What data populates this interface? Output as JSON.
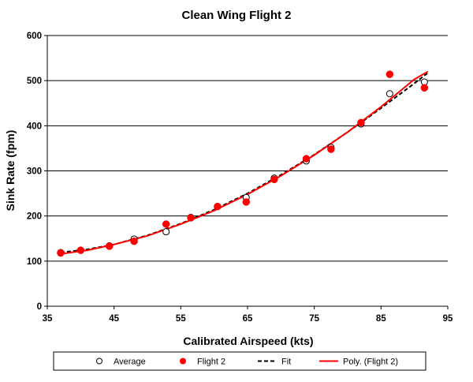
{
  "chart_data": {
    "type": "scatter",
    "title": "Clean Wing Flight 2",
    "xlabel": "Calibrated Airspeed (kts)",
    "ylabel": "Sink Rate (fpm)",
    "xlim": [
      35,
      95
    ],
    "ylim": [
      0,
      600
    ],
    "x_ticks": [
      35,
      45,
      55,
      65,
      75,
      85,
      95
    ],
    "y_ticks": [
      0,
      100,
      200,
      300,
      400,
      500,
      600
    ],
    "grid": "horizontal major gridlines",
    "legend_position": "bottom",
    "series": [
      {
        "name": "Average",
        "kind": "scatter",
        "marker": "hollow-circle",
        "color": "#000000",
        "x": [
          37,
          40,
          44.3,
          48,
          52.8,
          56.5,
          60.5,
          64.8,
          69,
          73.8,
          77.5,
          82,
          86.3,
          91.5
        ],
        "y": [
          119,
          124,
          134,
          149,
          165,
          197,
          221,
          241,
          284,
          322,
          352,
          404,
          471,
          497
        ]
      },
      {
        "name": "Flight 2",
        "kind": "scatter",
        "marker": "filled-circle",
        "color": "#ff0000",
        "x": [
          37,
          40,
          44.3,
          48,
          52.8,
          56.5,
          60.5,
          64.8,
          69,
          73.8,
          77.5,
          82,
          86.3,
          91.5
        ],
        "y": [
          118,
          124,
          133,
          144,
          182,
          196,
          221,
          231,
          281,
          327,
          348,
          407,
          514,
          484
        ]
      },
      {
        "name": "Fit",
        "kind": "line",
        "style": "dashed",
        "color": "#000000",
        "x": [
          37,
          41,
          45,
          50,
          55,
          60,
          65,
          70,
          75,
          80,
          85,
          90,
          92
        ],
        "y": [
          119,
          126,
          137,
          157,
          183,
          214,
          250,
          291,
          336,
          386,
          439,
          494,
          517
        ]
      },
      {
        "name": "Poly. (Flight 2)",
        "kind": "line",
        "style": "solid",
        "color": "#ff0000",
        "x": [
          37,
          41,
          45,
          50,
          55,
          60,
          65,
          70,
          75,
          80,
          85,
          90,
          92
        ],
        "y": [
          116,
          124,
          137,
          156,
          182,
          212,
          248,
          289,
          335,
          386,
          442,
          503,
          520
        ]
      }
    ]
  }
}
